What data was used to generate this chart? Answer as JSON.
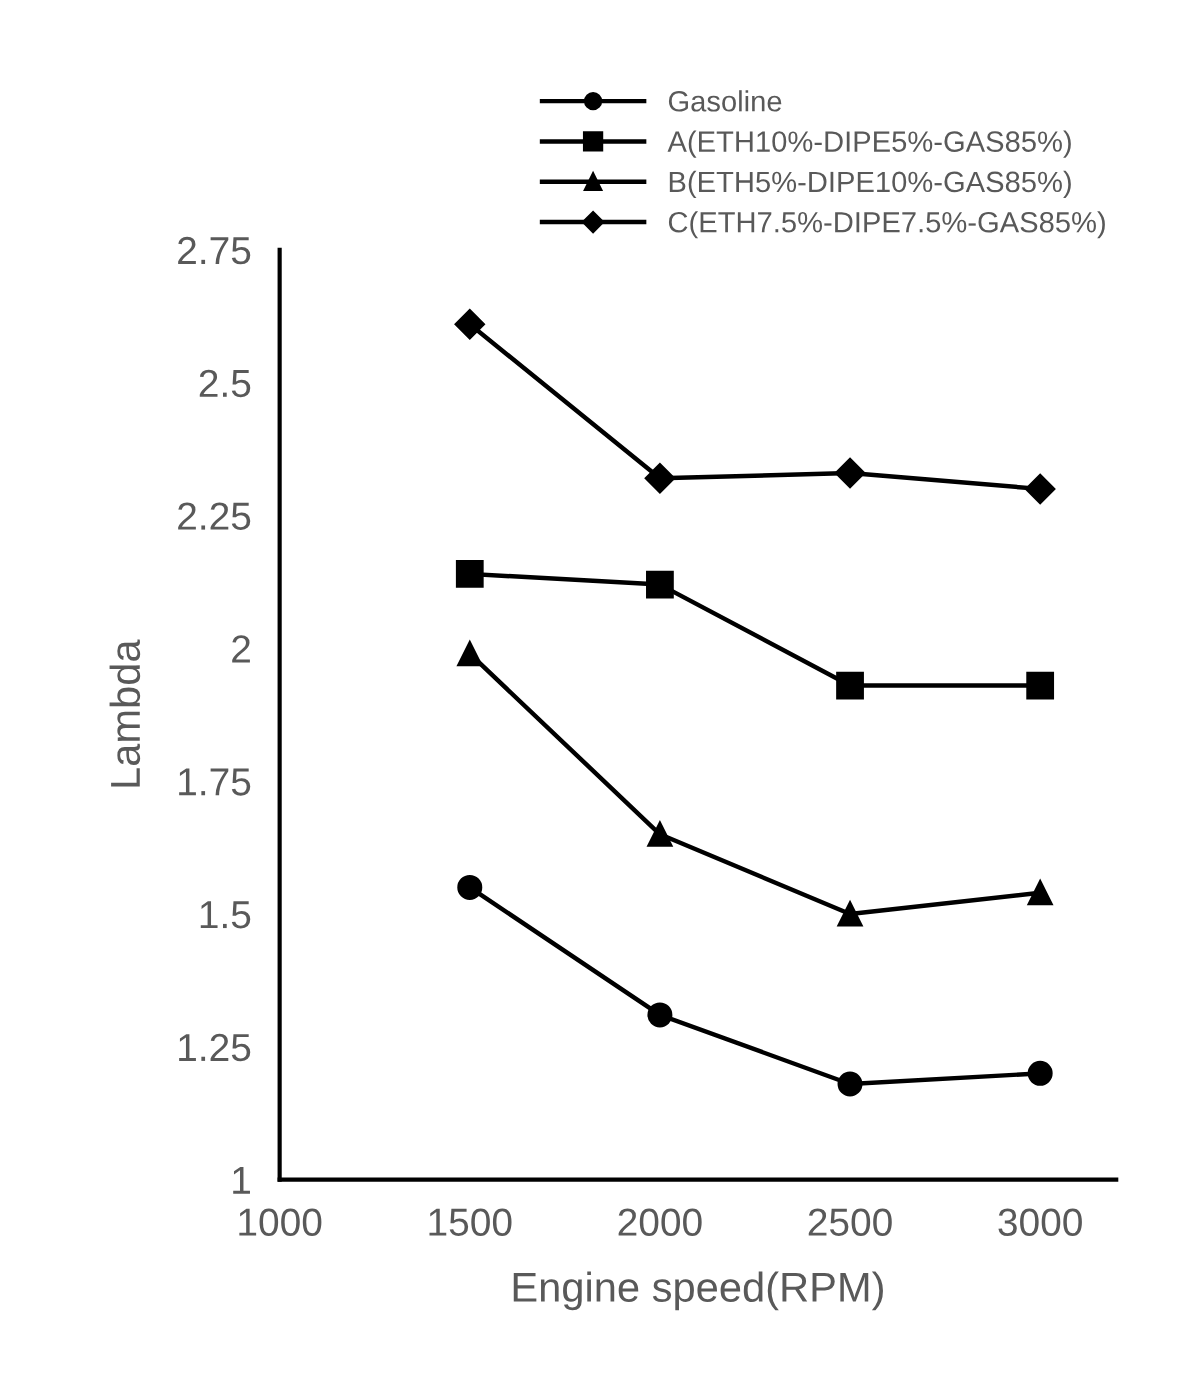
{
  "chart_data": {
    "type": "line",
    "xlabel": "Engine speed(RPM)",
    "ylabel": "Lambda",
    "x": [
      1500,
      2000,
      2500,
      3000
    ],
    "series": [
      {
        "name": "Gasoline",
        "color": "#000000",
        "marker": "circle",
        "values": [
          1.55,
          1.31,
          1.18,
          1.2
        ]
      },
      {
        "name": "A(ETH10%-DIPE5%-GAS85%)",
        "color": "#000000",
        "marker": "square",
        "values": [
          2.14,
          2.12,
          1.93,
          1.93
        ]
      },
      {
        "name": "B(ETH5%-DIPE10%-GAS85%)",
        "color": "#000000",
        "marker": "triangle",
        "values": [
          1.99,
          1.65,
          1.5,
          1.54
        ]
      },
      {
        "name": "C(ETH7.5%-DIPE7.5%-GAS85%)",
        "color": "#000000",
        "marker": "diamond",
        "values": [
          2.61,
          2.32,
          2.33,
          2.3
        ]
      }
    ],
    "xlim": [
      1000,
      3200
    ],
    "xticks": [
      1000,
      1500,
      2000,
      2500,
      3000
    ],
    "ylim": [
      1,
      2.75
    ],
    "yticks": [
      1,
      1.25,
      1.5,
      1.75,
      2,
      2.25,
      2.5,
      2.75
    ],
    "grid": false,
    "legend": "top right",
    "line_style": "solid"
  }
}
